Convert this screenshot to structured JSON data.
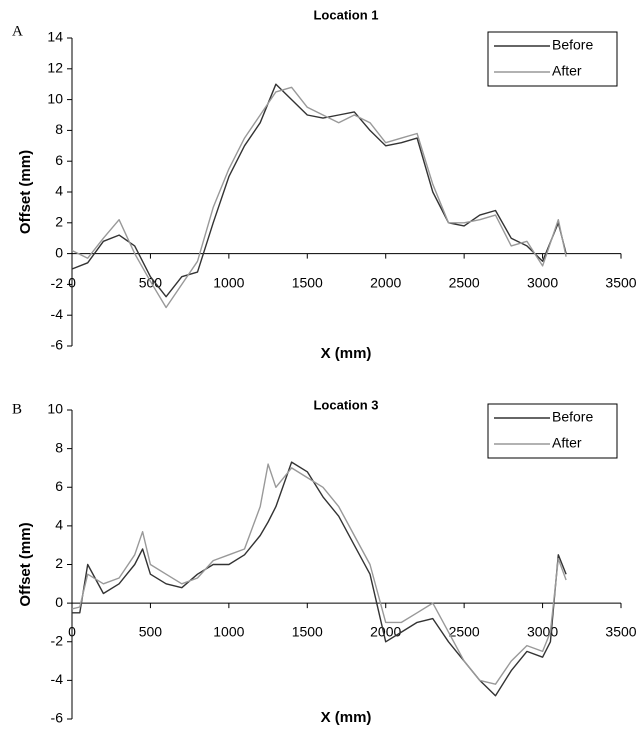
{
  "chart_data": [
    {
      "type": "line",
      "label": "A",
      "title": "Location 1",
      "x_label": "X (mm)",
      "y_label": "Offset (mm)",
      "x": [
        0,
        100,
        200,
        300,
        400,
        500,
        600,
        700,
        800,
        900,
        1000,
        1100,
        1200,
        1300,
        1400,
        1500,
        1600,
        1700,
        1800,
        1900,
        2000,
        2100,
        2200,
        2300,
        2400,
        2500,
        2600,
        2700,
        2800,
        2900,
        3000,
        3100,
        3150
      ],
      "series": [
        {
          "name": "Before",
          "color": "#333333",
          "values": [
            -1,
            -0.6,
            0.8,
            1.2,
            0.5,
            -1.5,
            -2.8,
            -1.5,
            -1.2,
            2,
            5,
            7,
            8.5,
            11,
            10,
            9,
            8.8,
            9,
            9.2,
            8,
            7,
            7.2,
            7.5,
            4,
            2,
            1.8,
            2.5,
            2.8,
            1,
            0.5,
            -0.5,
            2,
            0
          ]
        },
        {
          "name": "After",
          "color": "#999999",
          "values": [
            0.2,
            -0.3,
            1,
            2.2,
            0,
            -1.8,
            -3.5,
            -2,
            -0.5,
            3,
            5.5,
            7.5,
            9,
            10.5,
            10.8,
            9.5,
            9,
            8.5,
            9,
            8.5,
            7.2,
            7.5,
            7.8,
            4.5,
            2,
            2,
            2.2,
            2.5,
            0.5,
            0.8,
            -0.8,
            2.2,
            -0.2
          ]
        }
      ],
      "xlim": [
        0,
        3500
      ],
      "xticks": [
        0,
        500,
        1000,
        1500,
        2000,
        2500,
        3000,
        3500
      ],
      "ylim": [
        -6,
        14
      ],
      "yticks": [
        -6,
        -4,
        -2,
        0,
        2,
        4,
        6,
        8,
        10,
        12,
        14
      ],
      "legend": "upper right"
    },
    {
      "type": "line",
      "label": "B",
      "title": "Location 3",
      "x_label": "X (mm)",
      "y_label": "Offset (mm)",
      "x": [
        0,
        50,
        100,
        200,
        300,
        400,
        450,
        500,
        600,
        700,
        800,
        900,
        1000,
        1100,
        1200,
        1250,
        1300,
        1400,
        1500,
        1600,
        1700,
        1800,
        1900,
        2000,
        2100,
        2200,
        2300,
        2400,
        2500,
        2600,
        2700,
        2800,
        2900,
        3000,
        3050,
        3100,
        3150
      ],
      "series": [
        {
          "name": "Before",
          "color": "#333333",
          "values": [
            -0.5,
            -0.5,
            2,
            0.5,
            1,
            2,
            2.8,
            1.5,
            1,
            0.8,
            1.5,
            2,
            2,
            2.5,
            3.5,
            4.2,
            5,
            7.3,
            6.8,
            5.5,
            4.5,
            3,
            1.5,
            -2,
            -1.5,
            -1,
            -0.8,
            -2,
            -3,
            -4,
            -4.8,
            -3.5,
            -2.5,
            -2.8,
            -2,
            2.5,
            1.5
          ]
        },
        {
          "name": "After",
          "color": "#999999",
          "values": [
            -0.3,
            -0.2,
            1.5,
            1,
            1.3,
            2.5,
            3.7,
            2,
            1.5,
            1,
            1.3,
            2.2,
            2.5,
            2.8,
            5,
            7.2,
            6,
            7,
            6.5,
            6,
            5,
            3.5,
            2,
            -1,
            -1,
            -0.5,
            0,
            -1.5,
            -3,
            -4,
            -4.2,
            -3,
            -2.2,
            -2.5,
            -1.5,
            2.3,
            1.2
          ]
        }
      ],
      "xlim": [
        0,
        3500
      ],
      "xticks": [
        0,
        500,
        1000,
        1500,
        2000,
        2500,
        3000,
        3500
      ],
      "ylim": [
        -6,
        10
      ],
      "yticks": [
        -6,
        -4,
        -2,
        0,
        2,
        4,
        6,
        8,
        10
      ],
      "legend": "upper right"
    }
  ]
}
